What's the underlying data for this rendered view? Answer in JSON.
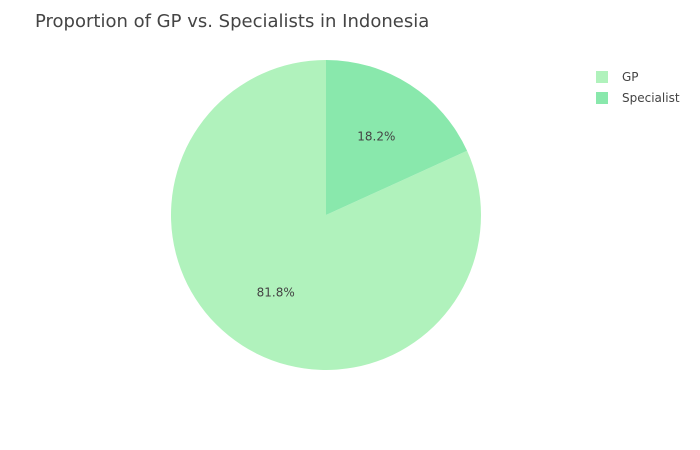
{
  "chart_data": {
    "type": "pie",
    "title": "Proportion of GP vs. Specialists in Indonesia",
    "slices": [
      {
        "label": "GP",
        "percent": 81.8,
        "percent_label": "81.8%",
        "color": "#b0f2bc"
      },
      {
        "label": "Specialist",
        "percent": 18.2,
        "percent_label": "18.2%",
        "color": "#89e8ac"
      }
    ],
    "legend_placement": "top-right"
  }
}
